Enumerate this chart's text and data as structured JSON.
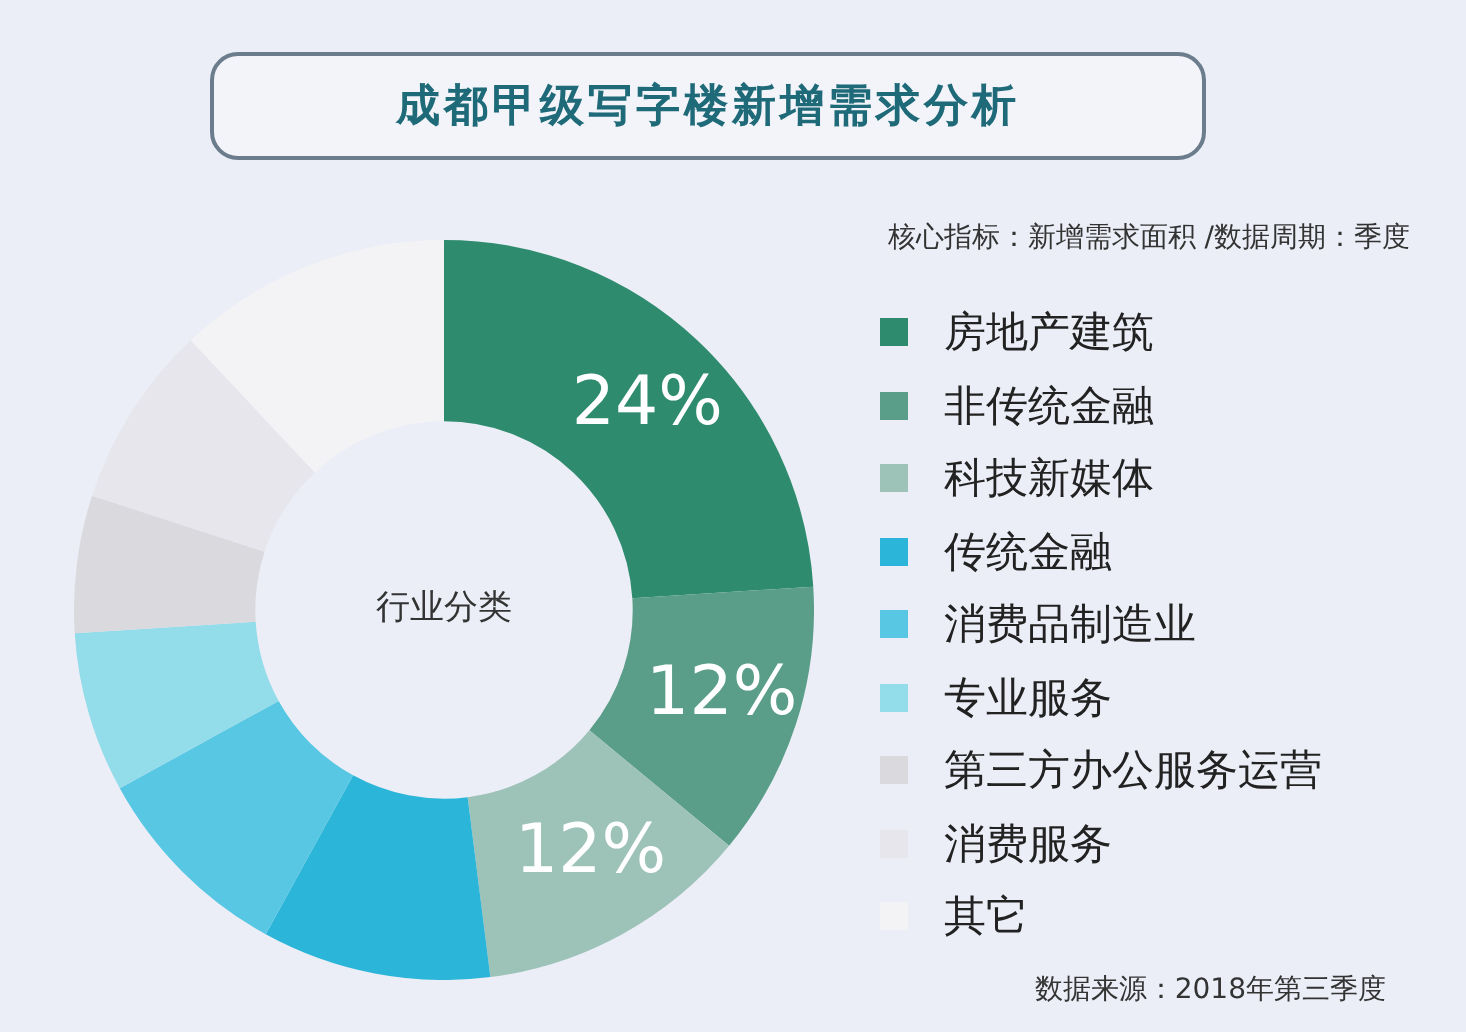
{
  "chart_data": {
    "type": "donut",
    "title": "成都甲级写字楼新增需求分析",
    "subtitle": "核心指标：新增需求面积 /数据周期：季度",
    "categories": [
      "房地产建筑",
      "非传统金融",
      "科技新媒体",
      "传统金融",
      "消费品制造业",
      "专业服务",
      "第三方办公服务运营",
      "消费服务",
      "其它"
    ],
    "values": [
      24,
      12,
      12,
      10,
      9,
      7,
      6,
      8,
      12
    ],
    "colors": [
      "#2e8b6e",
      "#5a9e8a",
      "#9dc2b8",
      "#2bb5d8",
      "#57c7e3",
      "#93dcea",
      "#d9d9de",
      "#e6e6ec",
      "#f3f3f6"
    ],
    "value_labels": [
      "24%",
      "12%",
      "12%",
      null,
      null,
      null,
      null,
      null,
      null
    ],
    "legend": "right",
    "annotations": [
      "行业分类",
      "数据来源：2018年第三季度"
    ]
  }
}
